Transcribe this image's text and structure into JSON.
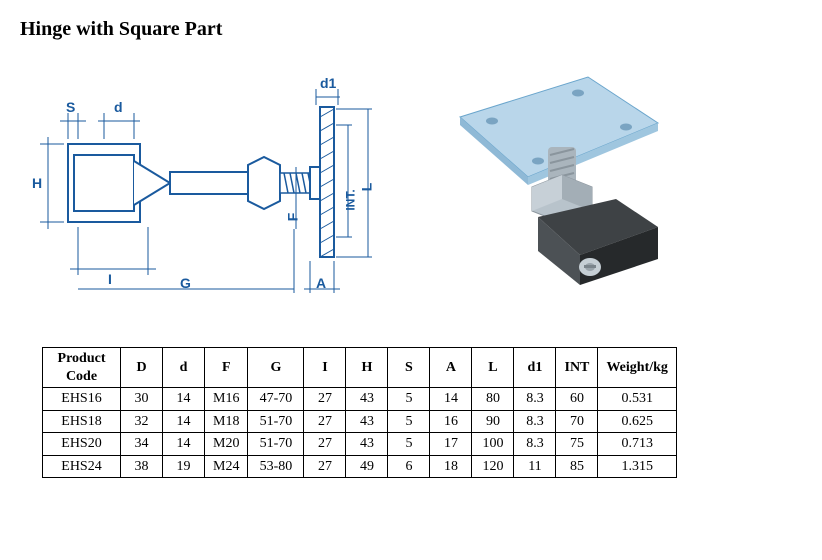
{
  "title": "Hinge with Square Part",
  "diagram": {
    "labels": {
      "S": "S",
      "d": "d",
      "d1": "d1",
      "H": "H",
      "I": "I",
      "G": "G",
      "A": "A",
      "F": "F",
      "L": "L",
      "INT": "INT."
    },
    "stroke_color": "#1a5a9e",
    "hatch_color": "#1a5a9e",
    "fill_color": "#ffffff",
    "label_fontsize": 14
  },
  "photo": {
    "plate_color": "#b9d6ea",
    "plate_edge": "#6aa5cc",
    "nut_color": "#b8c3cb",
    "thread_color": "#aab5bd",
    "body_color": "#3e4245",
    "body_dark": "#26292b",
    "screw_color": "#c6cfd5"
  },
  "table": {
    "columns": [
      "Product Code",
      "D",
      "d",
      "F",
      "G",
      "I",
      "H",
      "S",
      "A",
      "L",
      "d1",
      "INT",
      "Weight/kg"
    ],
    "rows": [
      [
        "EHS16",
        "30",
        "14",
        "M16",
        "47-70",
        "27",
        "43",
        "5",
        "14",
        "80",
        "8.3",
        "60",
        "0.531"
      ],
      [
        "EHS18",
        "32",
        "14",
        "M18",
        "51-70",
        "27",
        "43",
        "5",
        "16",
        "90",
        "8.3",
        "70",
        "0.625"
      ],
      [
        "EHS20",
        "34",
        "14",
        "M20",
        "51-70",
        "27",
        "43",
        "5",
        "17",
        "100",
        "8.3",
        "75",
        "0.713"
      ],
      [
        "EHS24",
        "38",
        "19",
        "M24",
        "53-80",
        "27",
        "49",
        "6",
        "18",
        "120",
        "11",
        "85",
        "1.315"
      ]
    ],
    "header_fontsize": 14,
    "cell_fontsize": 14,
    "border_color": "#000000"
  }
}
